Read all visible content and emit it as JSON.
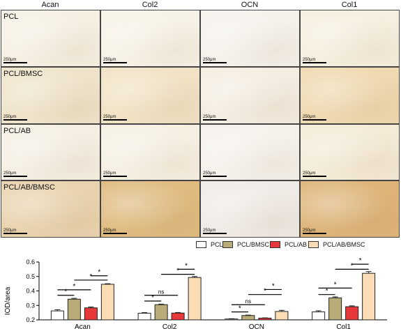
{
  "column_headers": [
    "Acan",
    "Col2",
    "OCN",
    "Col1"
  ],
  "row_labels": [
    "PCL",
    "PCL/BMSC",
    "PCL/AB",
    "PCL/AB/BMSC"
  ],
  "scale_bar_label": "250μm",
  "tile_colors": [
    [
      "#f6f0e3",
      "#f7f2e6",
      "#f5f2ec",
      "#f6efdf"
    ],
    [
      "#efe3ca",
      "#f1e2c4",
      "#f4ede1",
      "#efd9b0"
    ],
    [
      "#f5efe3",
      "#f6f0e3",
      "#f5f2ec",
      "#f4ebd7"
    ],
    [
      "#e9d3ae",
      "#dfbb80",
      "#f0ebe6",
      "#deb479"
    ]
  ],
  "colors": {
    "PCL": "#ffffff",
    "PCL/BMSC": "#b8ad78",
    "PCL/AB": "#e8383a",
    "PCL/AB/BMSC": "#fcdcb4"
  },
  "chart_data": {
    "type": "bar",
    "categories": [
      "Acan",
      "Col2",
      "OCN",
      "Col1"
    ],
    "ylabel": "IOD/area",
    "ylim": [
      0.2,
      0.6
    ],
    "yticks": [
      "0.2",
      "0.3",
      "0.4",
      "0.5",
      "0.6"
    ],
    "series": [
      {
        "name": "PCL",
        "values": [
          0.262,
          0.246,
          0.206,
          0.255
        ],
        "errors": [
          0.008,
          0.004,
          0.002,
          0.008
        ]
      },
      {
        "name": "PCL/BMSC",
        "values": [
          0.343,
          0.305,
          0.23,
          0.352
        ],
        "errors": [
          0.006,
          0.004,
          0.003,
          0.007
        ]
      },
      {
        "name": "PCL/AB",
        "values": [
          0.283,
          0.247,
          0.212,
          0.291
        ],
        "errors": [
          0.006,
          0.004,
          0.002,
          0.006
        ]
      },
      {
        "name": "PCL/AB/BMSC",
        "values": [
          0.446,
          0.493,
          0.258,
          0.522
        ],
        "errors": [
          0.004,
          0.007,
          0.008,
          0.012
        ]
      }
    ],
    "comparisons": [
      {
        "category": 0,
        "from": 0,
        "to": 1,
        "label": "*",
        "y": 0.37
      },
      {
        "category": 0,
        "from": 0,
        "to": 2,
        "label": "*",
        "y": 0.408
      },
      {
        "category": 0,
        "from": 1,
        "to": 3,
        "label": "*",
        "y": 0.475
      },
      {
        "category": 0,
        "from": 2,
        "to": 3,
        "label": "*",
        "y": 0.505
      },
      {
        "category": 1,
        "from": 0,
        "to": 1,
        "label": "*",
        "y": 0.33
      },
      {
        "category": 1,
        "from": 0,
        "to": 2,
        "label": "ns",
        "y": 0.37
      },
      {
        "category": 1,
        "from": 1,
        "to": 3,
        "label": "*",
        "y": 0.515
      },
      {
        "category": 1,
        "from": 2,
        "to": 3,
        "label": "*",
        "y": 0.55
      },
      {
        "category": 2,
        "from": 0,
        "to": 1,
        "label": "*",
        "y": 0.255
      },
      {
        "category": 2,
        "from": 0,
        "to": 2,
        "label": "ns",
        "y": 0.305
      },
      {
        "category": 2,
        "from": 1,
        "to": 3,
        "label": "*",
        "y": 0.375
      },
      {
        "category": 2,
        "from": 2,
        "to": 3,
        "label": "*",
        "y": 0.41
      },
      {
        "category": 3,
        "from": 0,
        "to": 1,
        "label": "*",
        "y": 0.375
      },
      {
        "category": 3,
        "from": 0,
        "to": 2,
        "label": "*",
        "y": 0.42
      },
      {
        "category": 3,
        "from": 1,
        "to": 3,
        "label": "*",
        "y": 0.55
      },
      {
        "category": 3,
        "from": 2,
        "to": 3,
        "label": "*",
        "y": 0.585
      }
    ]
  }
}
